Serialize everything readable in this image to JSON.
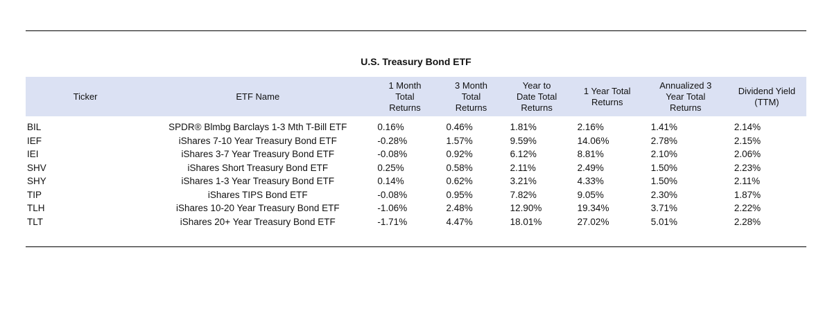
{
  "display": {
    "headers": [
      "Ticker",
      "ETF Name",
      "1 Month\nTotal\nReturns",
      "3 Month\nTotal\nReturns",
      "Year to\nDate Total\nReturns",
      "1 Year Total\nReturns",
      "Annualized 3\nYear Total\nReturns",
      "Dividend Yield\n(TTM)"
    ]
  },
  "chart_data": {
    "type": "table",
    "title": "U.S. Treasury Bond ETF",
    "columns": [
      "Ticker",
      "ETF Name",
      "1 Month Total Returns",
      "3 Month Total Returns",
      "Year to Date Total Returns",
      "1 Year Total Returns",
      "Annualized 3 Year Total Returns",
      "Dividend Yield (TTM)"
    ],
    "rows": [
      [
        "BIL",
        "SPDR® Blmbg Barclays 1-3 Mth T-Bill ETF",
        "0.16%",
        "0.46%",
        "1.81%",
        "2.16%",
        "1.41%",
        "2.14%"
      ],
      [
        "IEF",
        "iShares 7-10 Year Treasury Bond ETF",
        "-0.28%",
        "1.57%",
        "9.59%",
        "14.06%",
        "2.78%",
        "2.15%"
      ],
      [
        "IEI",
        "iShares 3-7 Year Treasury Bond ETF",
        "-0.08%",
        "0.92%",
        "6.12%",
        "8.81%",
        "2.10%",
        "2.06%"
      ],
      [
        "SHV",
        "iShares Short Treasury Bond ETF",
        "0.25%",
        "0.58%",
        "2.11%",
        "2.49%",
        "1.50%",
        "2.23%"
      ],
      [
        "SHY",
        "iShares 1-3 Year Treasury Bond ETF",
        "0.14%",
        "0.62%",
        "3.21%",
        "4.33%",
        "1.50%",
        "2.11%"
      ],
      [
        "TIP",
        "iShares TIPS Bond ETF",
        "-0.08%",
        "0.95%",
        "7.82%",
        "9.05%",
        "2.30%",
        "1.87%"
      ],
      [
        "TLH",
        "iShares 10-20 Year Treasury Bond ETF",
        "-1.06%",
        "2.48%",
        "12.90%",
        "19.34%",
        "3.71%",
        "2.22%"
      ],
      [
        "TLT",
        "iShares 20+ Year Treasury Bond ETF",
        "-1.71%",
        "4.47%",
        "18.01%",
        "27.02%",
        "5.01%",
        "2.28%"
      ]
    ]
  },
  "colors": {
    "header_bg": "#dbe1f3",
    "rule": "#000000",
    "text": "#111111"
  }
}
